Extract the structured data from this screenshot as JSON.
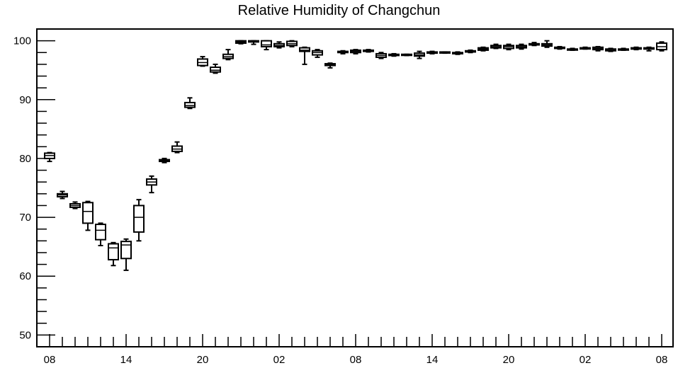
{
  "chart_data": {
    "type": "box",
    "title": "Relative Humidity of Changchun",
    "xlabel": "",
    "ylabel": "",
    "ylim": [
      48,
      102
    ],
    "x_tick_labels": [
      "08",
      "14",
      "20",
      "02",
      "08",
      "14",
      "20",
      "02",
      "08"
    ],
    "x_tick_label_hours": [
      0,
      6,
      12,
      18,
      24,
      30,
      36,
      42,
      48
    ],
    "y_ticks": [
      50,
      60,
      70,
      80,
      90,
      100
    ],
    "grid": false,
    "boxes": [
      {
        "hour": 0,
        "min": 79.5,
        "q1": 80.0,
        "median": 80.5,
        "q3": 80.9,
        "max": 81.0
      },
      {
        "hour": 1,
        "min": 73.2,
        "q1": 73.5,
        "median": 73.8,
        "q3": 74.0,
        "max": 74.4
      },
      {
        "hour": 2,
        "min": 71.5,
        "q1": 71.7,
        "median": 72.0,
        "q3": 72.3,
        "max": 72.6
      },
      {
        "hour": 3,
        "min": 67.8,
        "q1": 69.0,
        "median": 71.0,
        "q3": 72.5,
        "max": 72.7
      },
      {
        "hour": 4,
        "min": 65.2,
        "q1": 66.2,
        "median": 67.8,
        "q3": 68.8,
        "max": 69.0
      },
      {
        "hour": 5,
        "min": 61.8,
        "q1": 62.8,
        "median": 64.8,
        "q3": 65.5,
        "max": 65.7
      },
      {
        "hour": 6,
        "min": 61.0,
        "q1": 63.0,
        "median": 65.3,
        "q3": 65.9,
        "max": 66.3
      },
      {
        "hour": 7,
        "min": 66.0,
        "q1": 67.5,
        "median": 70.0,
        "q3": 72.0,
        "max": 73.0
      },
      {
        "hour": 8,
        "min": 74.2,
        "q1": 75.5,
        "median": 76.0,
        "q3": 76.5,
        "max": 77.0
      },
      {
        "hour": 9,
        "min": 79.3,
        "q1": 79.5,
        "median": 79.6,
        "q3": 79.8,
        "max": 80.0
      },
      {
        "hour": 10,
        "min": 81.0,
        "q1": 81.2,
        "median": 81.6,
        "q3": 82.1,
        "max": 82.8
      },
      {
        "hour": 11,
        "min": 88.5,
        "q1": 88.7,
        "median": 89.0,
        "q3": 89.5,
        "max": 90.3
      },
      {
        "hour": 12,
        "min": 95.7,
        "q1": 95.8,
        "median": 96.3,
        "q3": 96.9,
        "max": 97.3
      },
      {
        "hour": 13,
        "min": 94.5,
        "q1": 94.7,
        "median": 95.0,
        "q3": 95.5,
        "max": 96.0
      },
      {
        "hour": 14,
        "min": 96.8,
        "q1": 97.0,
        "median": 97.3,
        "q3": 97.7,
        "max": 98.5
      },
      {
        "hour": 15,
        "min": 99.5,
        "q1": 99.6,
        "median": 99.8,
        "q3": 100.0,
        "max": 100.0
      },
      {
        "hour": 16,
        "min": 99.4,
        "q1": 99.8,
        "median": 99.9,
        "q3": 100.0,
        "max": 100.0
      },
      {
        "hour": 17,
        "min": 98.5,
        "q1": 99.0,
        "median": 99.3,
        "q3": 100.0,
        "max": 100.0
      },
      {
        "hour": 18,
        "min": 98.8,
        "q1": 99.0,
        "median": 99.2,
        "q3": 99.5,
        "max": 99.8
      },
      {
        "hour": 19,
        "min": 99.0,
        "q1": 99.2,
        "median": 99.5,
        "q3": 99.9,
        "max": 100.0
      },
      {
        "hour": 20,
        "min": 96.0,
        "q1": 98.2,
        "median": 98.4,
        "q3": 98.8,
        "max": 98.9
      },
      {
        "hour": 21,
        "min": 97.2,
        "q1": 97.6,
        "median": 98.0,
        "q3": 98.3,
        "max": 98.5
      },
      {
        "hour": 22,
        "min": 95.4,
        "q1": 95.8,
        "median": 96.0,
        "q3": 96.1,
        "max": 96.2
      },
      {
        "hour": 23,
        "min": 97.8,
        "q1": 98.0,
        "median": 98.1,
        "q3": 98.2,
        "max": 98.3
      },
      {
        "hour": 24,
        "min": 97.8,
        "q1": 98.0,
        "median": 98.2,
        "q3": 98.4,
        "max": 98.5
      },
      {
        "hour": 25,
        "min": 98.1,
        "q1": 98.2,
        "median": 98.3,
        "q3": 98.4,
        "max": 98.5
      },
      {
        "hour": 26,
        "min": 97.0,
        "q1": 97.2,
        "median": 97.5,
        "q3": 97.8,
        "max": 98.0
      },
      {
        "hour": 27,
        "min": 97.4,
        "q1": 97.5,
        "median": 97.6,
        "q3": 97.7,
        "max": 97.8
      },
      {
        "hour": 28,
        "min": 97.5,
        "q1": 97.6,
        "median": 97.6,
        "q3": 97.7,
        "max": 97.7
      },
      {
        "hour": 29,
        "min": 97.0,
        "q1": 97.4,
        "median": 97.6,
        "q3": 97.9,
        "max": 98.2
      },
      {
        "hour": 30,
        "min": 97.8,
        "q1": 97.9,
        "median": 98.0,
        "q3": 98.1,
        "max": 98.2
      },
      {
        "hour": 31,
        "min": 97.9,
        "q1": 98.0,
        "median": 98.0,
        "q3": 98.1,
        "max": 98.1
      },
      {
        "hour": 32,
        "min": 97.7,
        "q1": 97.8,
        "median": 97.9,
        "q3": 98.0,
        "max": 98.1
      },
      {
        "hour": 33,
        "min": 98.0,
        "q1": 98.1,
        "median": 98.2,
        "q3": 98.3,
        "max": 98.4
      },
      {
        "hour": 34,
        "min": 98.3,
        "q1": 98.4,
        "median": 98.6,
        "q3": 98.8,
        "max": 98.9
      },
      {
        "hour": 35,
        "min": 98.7,
        "q1": 98.8,
        "median": 99.0,
        "q3": 99.2,
        "max": 99.4
      },
      {
        "hour": 36,
        "min": 98.5,
        "q1": 98.7,
        "median": 99.0,
        "q3": 99.2,
        "max": 99.4
      },
      {
        "hour": 37,
        "min": 98.6,
        "q1": 98.8,
        "median": 99.0,
        "q3": 99.2,
        "max": 99.4
      },
      {
        "hour": 38,
        "min": 99.2,
        "q1": 99.3,
        "median": 99.4,
        "q3": 99.5,
        "max": 99.7
      },
      {
        "hour": 39,
        "min": 98.9,
        "q1": 99.1,
        "median": 99.3,
        "q3": 99.5,
        "max": 100.0
      },
      {
        "hour": 40,
        "min": 98.6,
        "q1": 98.7,
        "median": 98.8,
        "q3": 98.9,
        "max": 99.0
      },
      {
        "hour": 41,
        "min": 98.4,
        "q1": 98.5,
        "median": 98.6,
        "q3": 98.6,
        "max": 98.7
      },
      {
        "hour": 42,
        "min": 98.6,
        "q1": 98.7,
        "median": 98.8,
        "q3": 98.8,
        "max": 98.9
      },
      {
        "hour": 43,
        "min": 98.3,
        "q1": 98.5,
        "median": 98.7,
        "q3": 98.9,
        "max": 99.0
      },
      {
        "hour": 44,
        "min": 98.2,
        "q1": 98.3,
        "median": 98.5,
        "q3": 98.6,
        "max": 98.7
      },
      {
        "hour": 45,
        "min": 98.4,
        "q1": 98.5,
        "median": 98.5,
        "q3": 98.6,
        "max": 98.7
      },
      {
        "hour": 46,
        "min": 98.5,
        "q1": 98.6,
        "median": 98.7,
        "q3": 98.8,
        "max": 98.9
      },
      {
        "hour": 47,
        "min": 98.3,
        "q1": 98.6,
        "median": 98.7,
        "q3": 98.8,
        "max": 98.9
      },
      {
        "hour": 48,
        "min": 98.3,
        "q1": 98.5,
        "median": 99.0,
        "q3": 99.6,
        "max": 99.8
      }
    ]
  }
}
